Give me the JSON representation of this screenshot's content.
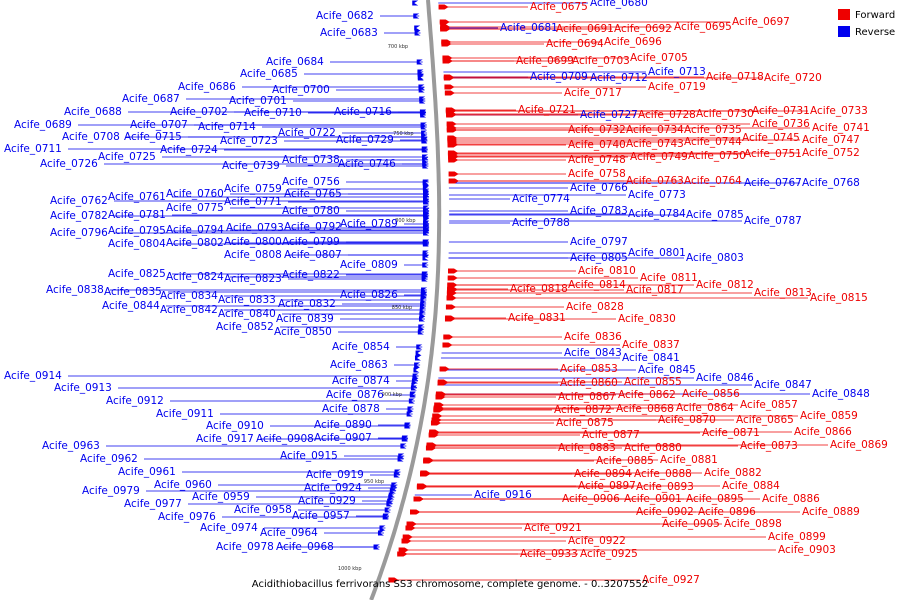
{
  "caption": "Acidithiobacillus ferrivorans SS3 chromosome, complete genome. - 0..3207552",
  "legend": [
    {
      "label": "Forward",
      "color": "#ee0000"
    },
    {
      "label": "Reverse",
      "color": "#0000ee"
    }
  ],
  "ticks": [
    "700 kbp",
    "750 kbp",
    "800 kbp",
    "850 kbp",
    "900 kbp",
    "950 kbp",
    "1000 kbp"
  ],
  "reverse_genes": [
    "Acife_0682",
    "Acife_0683",
    "Acife_0684",
    "Acife_0685",
    "Acife_0686",
    "Acife_0687",
    "Acife_0688",
    "Acife_0689",
    "Acife_0700",
    "Acife_0701",
    "Acife_0702",
    "Acife_0707",
    "Acife_0708",
    "Acife_0710",
    "Acife_0711",
    "Acife_0714",
    "Acife_0715",
    "Acife_0716",
    "Acife_0722",
    "Acife_0723",
    "Acife_0724",
    "Acife_0725",
    "Acife_0726",
    "Acife_0729",
    "Acife_0738",
    "Acife_0739",
    "Acife_0746",
    "Acife_0756",
    "Acife_0759",
    "Acife_0760",
    "Acife_0761",
    "Acife_0762",
    "Acife_0765",
    "Acife_0771",
    "Acife_0775",
    "Acife_0780",
    "Acife_0781",
    "Acife_0782",
    "Acife_0789",
    "Acife_0792",
    "Acife_0793",
    "Acife_0794",
    "Acife_0795",
    "Acife_0796",
    "Acife_0799",
    "Acife_0800",
    "Acife_0802",
    "Acife_0804",
    "Acife_0807",
    "Acife_0808",
    "Acife_0809",
    "Acife_0822",
    "Acife_0823",
    "Acife_0824",
    "Acife_0825",
    "Acife_0826",
    "Acife_0832",
    "Acife_0833",
    "Acife_0834",
    "Acife_0835",
    "Acife_0838",
    "Acife_0839",
    "Acife_0840",
    "Acife_0842",
    "Acife_0844",
    "Acife_0850",
    "Acife_0852",
    "Acife_0854",
    "Acife_0863",
    "Acife_0874",
    "Acife_0876",
    "Acife_0878",
    "Acife_0890",
    "Acife_0907",
    "Acife_0908",
    "Acife_0910",
    "Acife_0911",
    "Acife_0912",
    "Acife_0913",
    "Acife_0914",
    "Acife_0915",
    "Acife_0917",
    "Acife_0919",
    "Acife_0924",
    "Acife_0929",
    "Acife_0957",
    "Acife_0958",
    "Acife_0959",
    "Acife_0960",
    "Acife_0961",
    "Acife_0962",
    "Acife_0963",
    "Acife_0964",
    "Acife_0968",
    "Acife_0974",
    "Acife_0976",
    "Acife_0977",
    "Acife_0978",
    "Acife_0979",
    "Acife_0680",
    "Acife_0681",
    "Acife_0709",
    "Acife_0712",
    "Acife_0713",
    "Acife_0727",
    "Acife_0766",
    "Acife_0767",
    "Acife_0768",
    "Acife_0773",
    "Acife_0774",
    "Acife_0783",
    "Acife_0784",
    "Acife_0785",
    "Acife_0787",
    "Acife_0788",
    "Acife_0797",
    "Acife_0801",
    "Acife_0803",
    "Acife_0805",
    "Acife_0841",
    "Acife_0843",
    "Acife_0845",
    "Acife_0846",
    "Acife_0847",
    "Acife_0848",
    "Acife_0916"
  ],
  "forward_genes": [
    "Acife_0675",
    "Acife_0691",
    "Acife_0692",
    "Acife_0694",
    "Acife_0695",
    "Acife_0696",
    "Acife_0697",
    "Acife_0699",
    "Acife_0703",
    "Acife_0705",
    "Acife_0717",
    "Acife_0718",
    "Acife_0719",
    "Acife_0720",
    "Acife_0721",
    "Acife_0728",
    "Acife_0730",
    "Acife_0731",
    "Acife_0732",
    "Acife_0733",
    "Acife_0734",
    "Acife_0735",
    "Acife_0736",
    "Acife_0740",
    "Acife_0741",
    "Acife_0743",
    "Acife_0744",
    "Acife_0745",
    "Acife_0747",
    "Acife_0748",
    "Acife_0749",
    "Acife_0750",
    "Acife_0751",
    "Acife_0752",
    "Acife_0758",
    "Acife_0763",
    "Acife_0764",
    "Acife_0810",
    "Acife_0811",
    "Acife_0812",
    "Acife_0813",
    "Acife_0814",
    "Acife_0815",
    "Acife_0817",
    "Acife_0818",
    "Acife_0828",
    "Acife_0830",
    "Acife_0831",
    "Acife_0836",
    "Acife_0837",
    "Acife_0853",
    "Acife_0855",
    "Acife_0856",
    "Acife_0857",
    "Acife_0859",
    "Acife_0860",
    "Acife_0862",
    "Acife_0864",
    "Acife_0865",
    "Acife_0866",
    "Acife_0867",
    "Acife_0868",
    "Acife_0869",
    "Acife_0870",
    "Acife_0871",
    "Acife_0872",
    "Acife_0873",
    "Acife_0875",
    "Acife_0877",
    "Acife_0880",
    "Acife_0881",
    "Acife_0882",
    "Acife_0883",
    "Acife_0884",
    "Acife_0885",
    "Acife_0886",
    "Acife_0888",
    "Acife_0889",
    "Acife_0893",
    "Acife_0894",
    "Acife_0895",
    "Acife_0896",
    "Acife_0897",
    "Acife_0898",
    "Acife_0899",
    "Acife_0901",
    "Acife_0902",
    "Acife_0903",
    "Acife_0905",
    "Acife_0906",
    "Acife_0921",
    "Acife_0922",
    "Acife_0925",
    "Acife_0927",
    "Acife_0933"
  ]
}
